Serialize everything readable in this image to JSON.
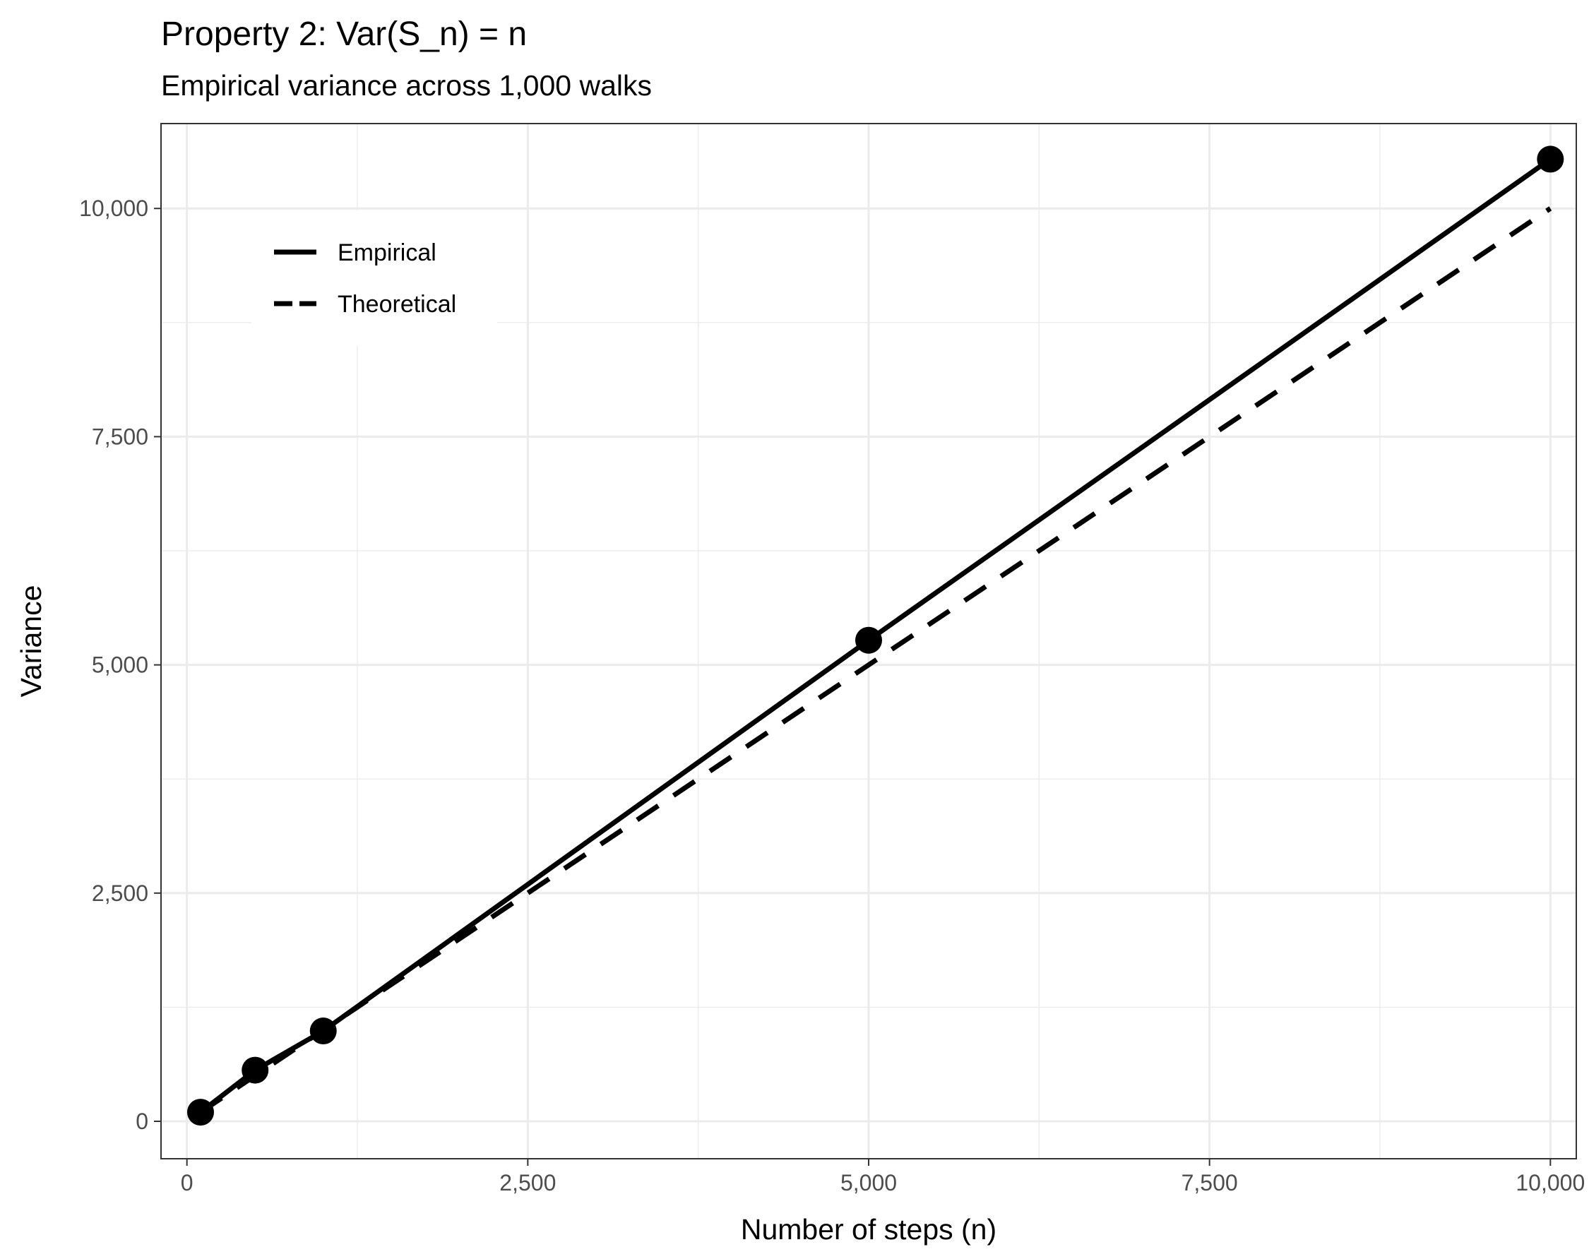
{
  "chart_data": {
    "type": "line",
    "title": "Property 2: Var(S_n) = n",
    "subtitle": "Empirical variance across 1,000 walks",
    "xlabel": "Number of steps (n)",
    "ylabel": "Variance",
    "xlim": [
      -190,
      10190
    ],
    "ylim": [
      -410,
      10930
    ],
    "xticks": [
      0,
      2500,
      5000,
      7500,
      10000
    ],
    "xtick_labels": [
      "0",
      "2,500",
      "5,000",
      "7,500",
      "10,000"
    ],
    "yticks": [
      0,
      2500,
      5000,
      7500,
      10000
    ],
    "ytick_labels": [
      "0",
      "2,500",
      "5,000",
      "7,500",
      "10,000"
    ],
    "grid": true,
    "legend_position": "top-left",
    "series": [
      {
        "name": "Empirical",
        "line_style": "solid",
        "markers": true,
        "color": "#000000",
        "x": [
          100,
          500,
          1000,
          5000,
          10000
        ],
        "y": [
          100,
          560,
          990,
          5270,
          10540
        ]
      },
      {
        "name": "Theoretical",
        "line_style": "dashed",
        "markers": false,
        "color": "#000000",
        "x": [
          100,
          500,
          1000,
          5000,
          10000
        ],
        "y": [
          100,
          500,
          1000,
          5000,
          10000
        ]
      }
    ]
  }
}
